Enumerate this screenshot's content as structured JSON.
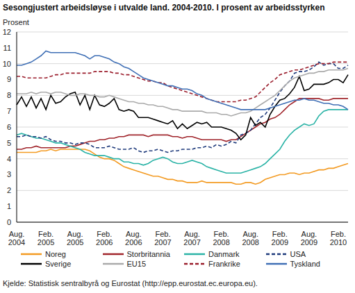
{
  "chart_data": {
    "type": "line",
    "title": "Sesongjustert arbeidsløyse i utvalde land. 2004-2010. I prosent av arbeidsstyrken",
    "y_label": "Prosent",
    "source": "Kjelde: Statistisk sentralbyrå og Eurostat (http://epp.eurostat.ec.europa.eu).",
    "categories": [
      "Aug. 2004",
      null,
      null,
      null,
      null,
      null,
      "Feb. 2005",
      null,
      null,
      null,
      null,
      null,
      "Aug. 2005",
      null,
      null,
      null,
      null,
      null,
      "Feb. 2006",
      null,
      null,
      null,
      null,
      null,
      "Aug. 2006",
      null,
      null,
      null,
      null,
      null,
      "Feb. 2007",
      null,
      null,
      null,
      null,
      null,
      "Aug. 2007",
      null,
      null,
      null,
      null,
      null,
      "Feb. 2008",
      null,
      null,
      null,
      null,
      null,
      "Aug. 2008",
      null,
      null,
      null,
      null,
      null,
      "Feb. 2009",
      null,
      null,
      null,
      null,
      null,
      "Aug. 2009",
      null,
      null,
      null,
      null,
      null,
      "Feb. 2010",
      null,
      null
    ],
    "ylim": [
      0,
      12
    ],
    "yticks": [
      0,
      1,
      2,
      3,
      4,
      5,
      6,
      7,
      8,
      9,
      10,
      11,
      12
    ],
    "grid": true,
    "legend": "bottom",
    "series": [
      {
        "name": "Noreg",
        "color": "#f39a21",
        "line_style": "solid",
        "values": [
          4.4,
          4.4,
          4.4,
          4.4,
          4.4,
          4.5,
          4.5,
          4.6,
          4.5,
          4.6,
          4.6,
          4.6,
          4.6,
          4.6,
          4.6,
          4.5,
          4.3,
          4.1,
          4.0,
          4.0,
          3.9,
          3.7,
          3.5,
          3.4,
          3.3,
          3.2,
          3.1,
          3.0,
          2.9,
          2.9,
          2.8,
          2.7,
          2.7,
          2.6,
          2.6,
          2.5,
          2.5,
          2.5,
          2.6,
          2.5,
          2.5,
          2.5,
          2.5,
          2.5,
          2.5,
          2.4,
          2.4,
          2.5,
          2.5,
          2.4,
          2.5,
          2.7,
          2.8,
          2.9,
          3.0,
          3.0,
          3.1,
          3.1,
          3.0,
          3.1,
          3.1,
          3.2,
          3.3,
          3.3,
          3.4,
          3.4,
          3.5,
          3.6,
          3.7
        ]
      },
      {
        "name": "Storbritannia",
        "color": "#a0242b",
        "line_style": "solid",
        "values": [
          4.6,
          4.6,
          4.7,
          4.7,
          4.8,
          4.7,
          4.7,
          4.7,
          4.7,
          4.7,
          4.7,
          4.8,
          4.8,
          4.9,
          5.0,
          5.1,
          5.1,
          5.2,
          5.2,
          5.3,
          5.3,
          5.4,
          5.4,
          5.5,
          5.5,
          5.5,
          5.5,
          5.4,
          5.5,
          5.5,
          5.5,
          5.5,
          5.4,
          5.4,
          5.3,
          5.4,
          5.4,
          5.3,
          5.2,
          5.2,
          5.2,
          5.2,
          5.2,
          5.1,
          5.2,
          5.2,
          5.4,
          5.6,
          5.8,
          6.0,
          6.2,
          6.3,
          6.5,
          6.6,
          6.8,
          7.1,
          7.4,
          7.6,
          7.8,
          7.8,
          7.8,
          7.8,
          7.8,
          7.7,
          7.7,
          7.8,
          7.8,
          7.8,
          7.8
        ]
      },
      {
        "name": "Danmark",
        "color": "#2ab3a6",
        "line_style": "solid",
        "values": [
          5.5,
          5.6,
          5.5,
          5.4,
          5.3,
          5.3,
          5.2,
          5.1,
          5.0,
          5.0,
          4.9,
          4.8,
          4.7,
          4.6,
          4.4,
          4.3,
          4.2,
          4.2,
          4.2,
          4.1,
          4.0,
          4.0,
          3.8,
          3.8,
          3.7,
          3.7,
          3.6,
          3.7,
          3.9,
          4.0,
          4.1,
          4.0,
          3.8,
          3.7,
          3.7,
          3.8,
          3.9,
          3.8,
          3.7,
          3.5,
          3.4,
          3.3,
          3.2,
          3.1,
          3.1,
          3.1,
          3.1,
          3.2,
          3.3,
          3.4,
          3.5,
          3.7,
          4.0,
          4.3,
          4.6,
          5.1,
          5.5,
          5.8,
          6.0,
          6.2,
          6.1,
          6.2,
          6.7,
          7.0,
          7.1,
          7.1,
          7.1,
          7.1,
          7.1
        ]
      },
      {
        "name": "USA",
        "color": "#1e3a7b",
        "line_style": "dashed",
        "values": [
          5.4,
          5.4,
          5.5,
          5.4,
          5.4,
          5.3,
          5.4,
          5.2,
          5.1,
          5.1,
          5.0,
          5.0,
          4.9,
          5.0,
          5.0,
          4.9,
          4.7,
          4.7,
          4.7,
          4.8,
          4.7,
          4.6,
          4.6,
          4.6,
          4.7,
          4.5,
          4.4,
          4.5,
          4.5,
          4.6,
          4.5,
          4.4,
          4.5,
          4.5,
          4.6,
          4.6,
          4.6,
          4.7,
          4.7,
          4.8,
          4.7,
          4.9,
          4.8,
          4.9,
          5.1,
          5.0,
          5.5,
          5.6,
          5.8,
          6.2,
          6.6,
          6.8,
          7.2,
          7.7,
          8.2,
          8.6,
          8.9,
          9.4,
          9.5,
          9.5,
          9.6,
          9.8,
          10.1,
          9.9,
          10.0,
          10.0,
          9.7,
          9.7,
          9.9
        ]
      },
      {
        "name": "Sverige",
        "color": "#000000",
        "line_style": "solid",
        "values": [
          7.4,
          7.9,
          7.3,
          7.9,
          7.2,
          7.8,
          7.1,
          8.0,
          7.5,
          7.6,
          7.9,
          8.1,
          8.2,
          7.4,
          8.0,
          7.1,
          8.0,
          7.4,
          7.3,
          7.5,
          7.8,
          7.1,
          7.0,
          7.1,
          7.0,
          6.6,
          6.6,
          6.6,
          6.5,
          6.4,
          6.3,
          6.2,
          6.4,
          5.9,
          6.2,
          5.9,
          6.1,
          6.3,
          6.2,
          6.3,
          6.0,
          6.0,
          6.0,
          5.9,
          5.8,
          5.6,
          5.2,
          5.5,
          6.6,
          6.1,
          6.3,
          6.0,
          6.8,
          7.3,
          7.7,
          7.8,
          8.1,
          8.5,
          9.2,
          8.3,
          8.4,
          8.7,
          8.7,
          8.7,
          8.8,
          9.0,
          9.0,
          8.8,
          9.3
        ]
      },
      {
        "name": "EU15",
        "color": "#aaaaaa",
        "line_style": "solid",
        "values": [
          8.1,
          8.1,
          8.1,
          8.2,
          8.1,
          8.2,
          8.2,
          8.1,
          8.2,
          8.2,
          8.1,
          8.0,
          8.0,
          8.1,
          8.1,
          8.0,
          8.0,
          7.9,
          7.9,
          8.0,
          7.9,
          7.8,
          7.7,
          7.6,
          7.6,
          7.5,
          7.5,
          7.4,
          7.4,
          7.3,
          7.3,
          7.2,
          7.1,
          7.1,
          7.0,
          7.0,
          7.0,
          7.0,
          7.0,
          6.9,
          6.9,
          6.9,
          6.8,
          6.8,
          6.7,
          6.8,
          6.9,
          6.9,
          7.0,
          7.2,
          7.4,
          7.6,
          7.8,
          8.0,
          8.3,
          8.6,
          8.9,
          9.1,
          9.2,
          9.3,
          9.4,
          9.4,
          9.5,
          9.5,
          9.6,
          9.6,
          9.6,
          9.6,
          9.7
        ]
      },
      {
        "name": "Frankrike",
        "color": "#9a1c2b",
        "line_style": "dashed",
        "values": [
          9.2,
          9.2,
          9.1,
          9.1,
          9.1,
          9.1,
          9.1,
          9.2,
          9.3,
          9.3,
          9.4,
          9.4,
          9.4,
          9.4,
          9.4,
          9.4,
          9.5,
          9.5,
          9.5,
          9.5,
          9.4,
          9.4,
          9.3,
          9.3,
          9.2,
          9.1,
          9.0,
          8.9,
          8.9,
          8.8,
          8.8,
          8.6,
          8.5,
          8.4,
          8.3,
          8.2,
          8.1,
          8.0,
          7.9,
          7.8,
          7.7,
          7.6,
          7.6,
          7.6,
          7.6,
          7.6,
          7.7,
          7.7,
          7.8,
          7.9,
          8.2,
          8.5,
          8.8,
          9.0,
          9.3,
          9.4,
          9.5,
          9.6,
          9.6,
          9.7,
          9.8,
          9.9,
          10.0,
          10.0,
          10.0,
          10.1,
          10.1,
          10.1,
          10.1
        ]
      },
      {
        "name": "Tyskland",
        "color": "#3f6fb5",
        "line_style": "solid",
        "values": [
          9.9,
          9.9,
          10.0,
          10.1,
          10.3,
          10.5,
          10.8,
          10.7,
          10.7,
          10.7,
          10.7,
          10.7,
          10.7,
          10.6,
          10.5,
          10.3,
          10.5,
          10.5,
          10.4,
          10.3,
          10.1,
          10.0,
          9.8,
          9.7,
          9.5,
          9.3,
          9.1,
          9.0,
          8.9,
          8.8,
          8.7,
          8.6,
          8.6,
          8.5,
          8.4,
          8.4,
          8.3,
          8.1,
          8.0,
          7.8,
          7.7,
          7.6,
          7.5,
          7.4,
          7.3,
          7.2,
          7.1,
          7.1,
          7.1,
          7.1,
          7.1,
          7.1,
          7.2,
          7.3,
          7.4,
          7.5,
          7.6,
          7.7,
          7.7,
          7.8,
          7.7,
          7.7,
          7.6,
          7.5,
          7.5,
          7.4,
          7.4,
          7.3,
          7.1
        ]
      }
    ]
  }
}
